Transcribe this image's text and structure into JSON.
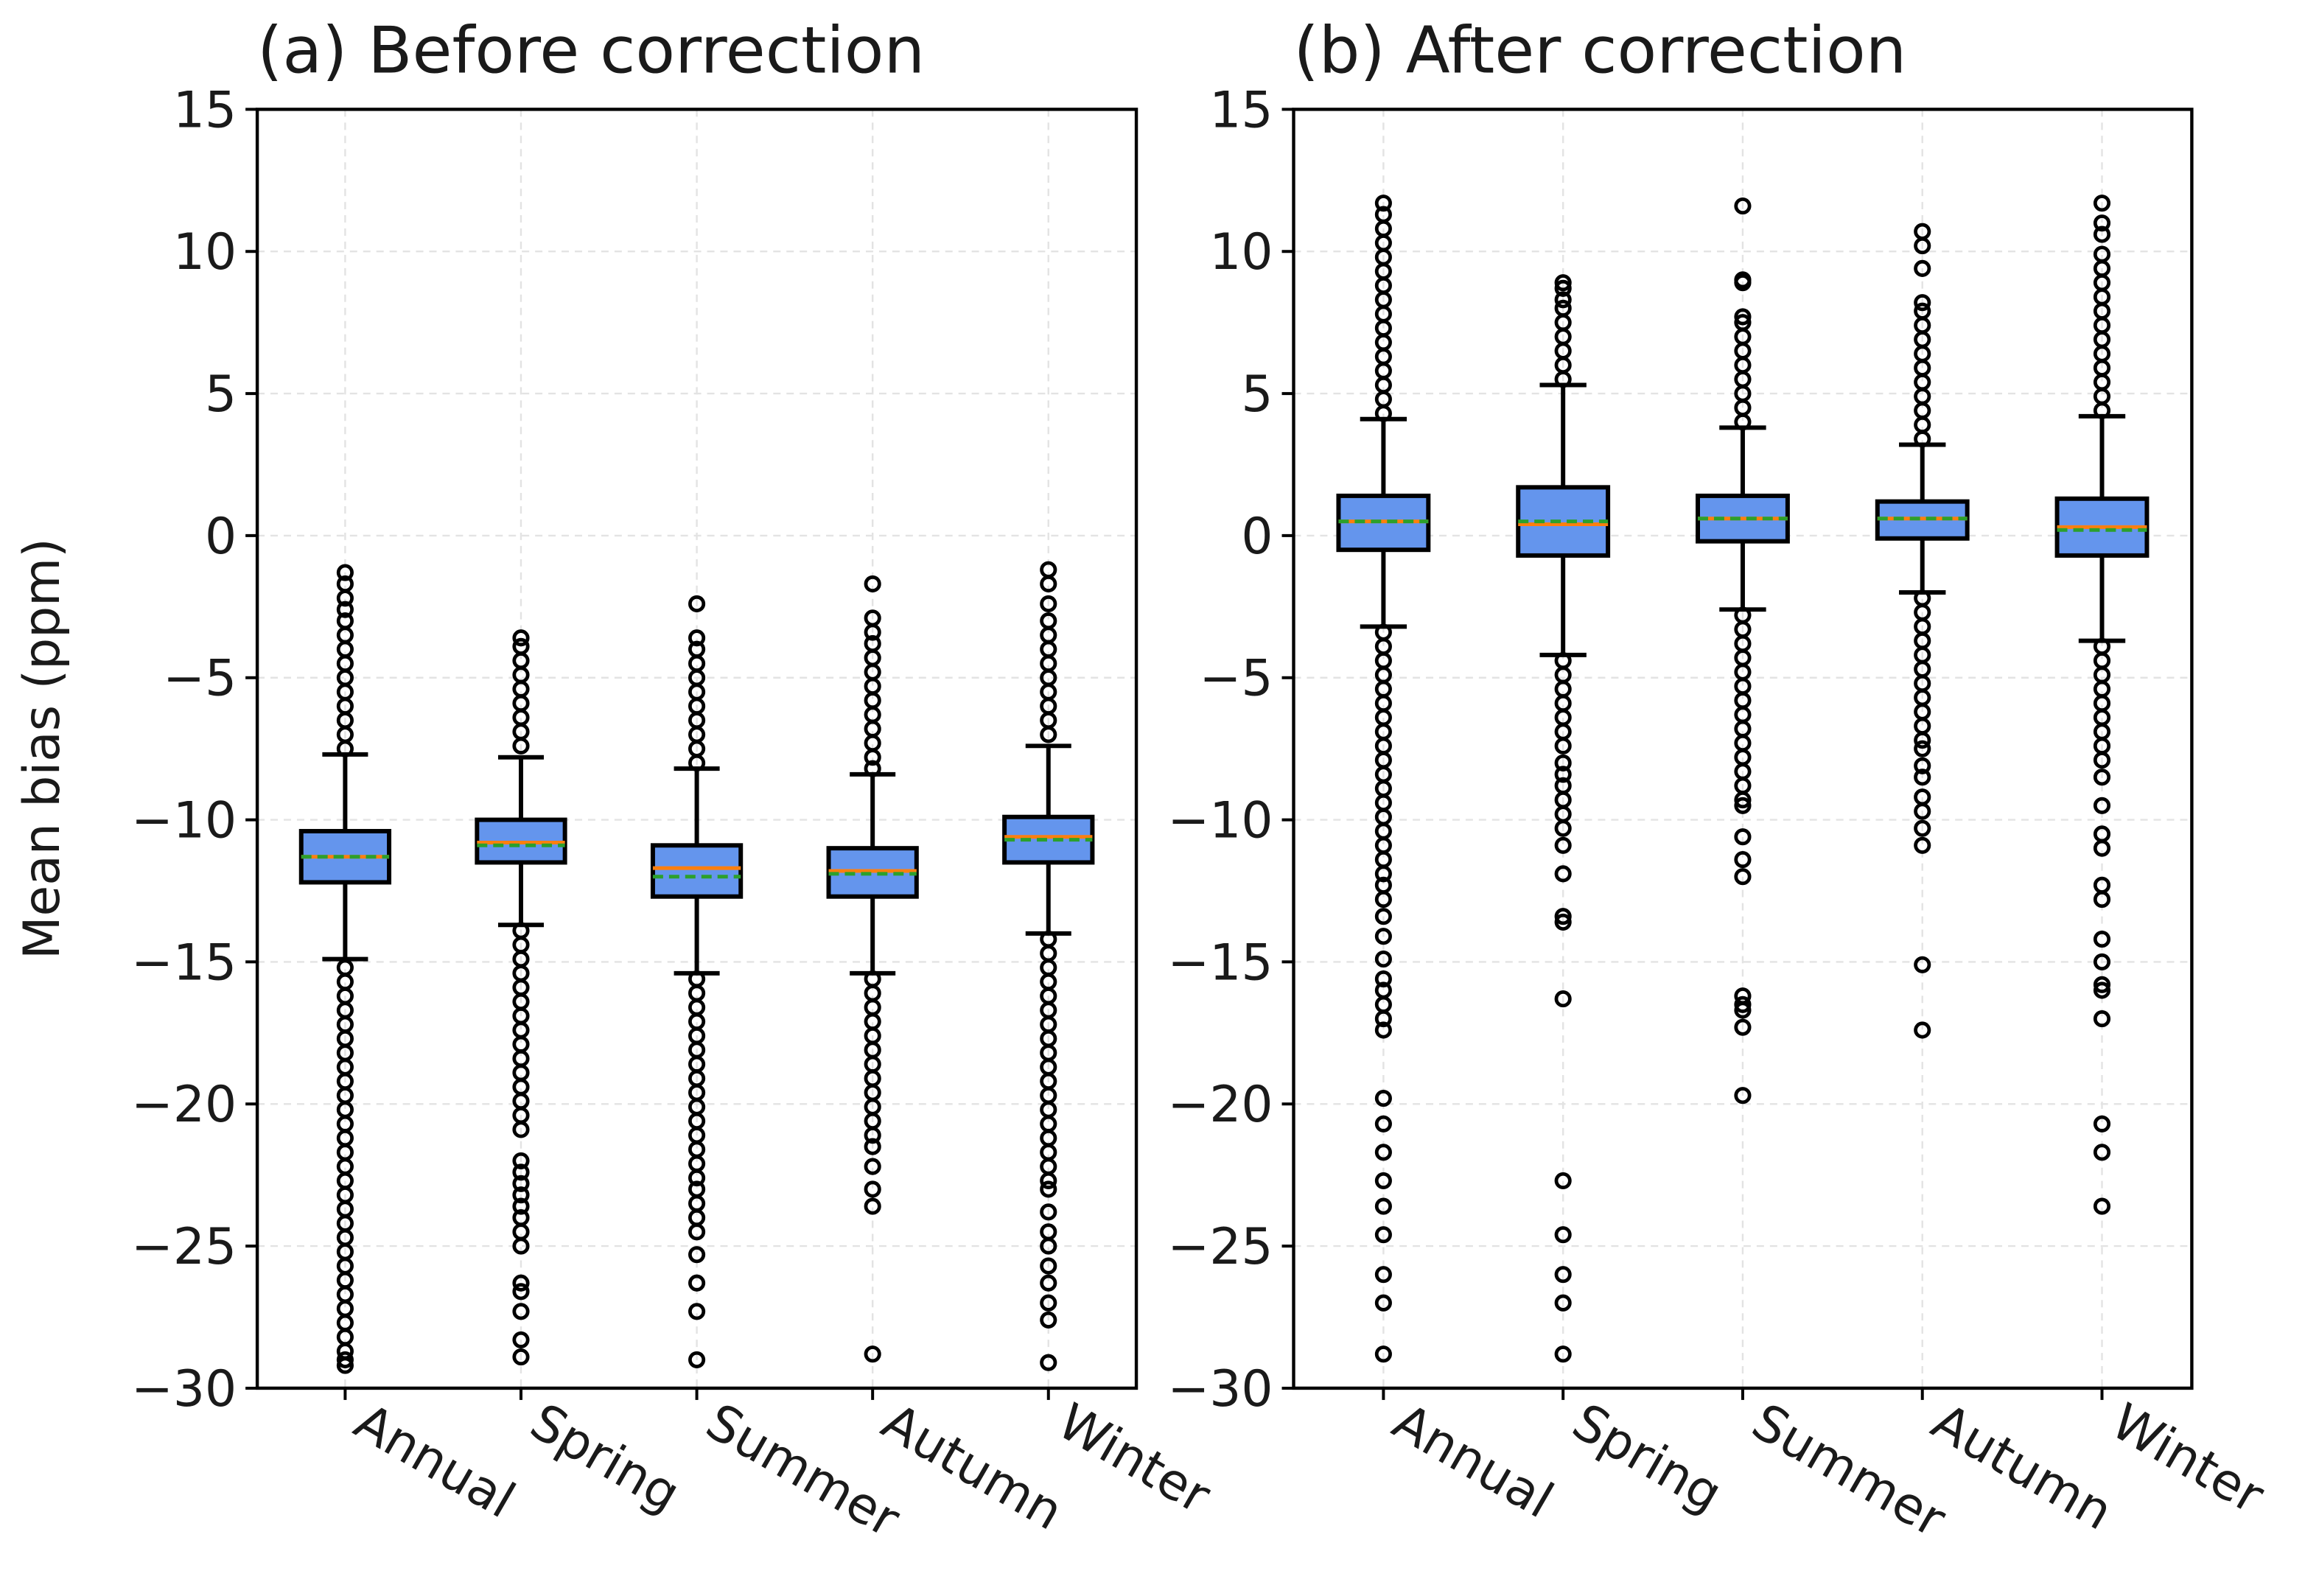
{
  "chart_data": [
    {
      "type": "box",
      "title": "(a) Before correction",
      "ylabel": "Mean bias (ppm)",
      "categories": [
        "Annual",
        "Spring",
        "Summer",
        "Autumn",
        "Winter"
      ],
      "color": "#6495ed",
      "median_color": "#ff7f0e",
      "mean_color": "#2ca02c",
      "grid": true,
      "ylim": [
        -30,
        15
      ],
      "yticks": [
        {
          "value": -30,
          "label": "−30"
        },
        {
          "value": -25,
          "label": "−25"
        },
        {
          "value": -20,
          "label": "−20"
        },
        {
          "value": -15,
          "label": "−15"
        },
        {
          "value": -10,
          "label": "−10"
        },
        {
          "value": -5,
          "label": "−5"
        },
        0,
        5,
        10,
        15
      ],
      "boxes": [
        {
          "whisker_low": -14.9,
          "q1": -12.2,
          "median": -11.3,
          "mean": -11.3,
          "q3": -10.4,
          "whisker_high": -7.7,
          "outliers": [
            -1.3,
            -1.7,
            -2.2,
            -2.6,
            -3.0,
            -3.5,
            -4.0,
            -4.5,
            -5.0,
            -5.5,
            -6.0,
            -6.5,
            -7.0,
            -7.5,
            -15.2,
            -15.7,
            -16.2,
            -16.7,
            -17.2,
            -17.7,
            -18.2,
            -18.7,
            -19.2,
            -19.7,
            -20.2,
            -20.7,
            -21.2,
            -21.7,
            -22.2,
            -22.7,
            -23.2,
            -23.7,
            -24.2,
            -24.7,
            -25.2,
            -25.7,
            -26.2,
            -26.7,
            -27.2,
            -27.7,
            -28.2,
            -28.7,
            -29.0,
            -29.2
          ]
        },
        {
          "whisker_low": -13.7,
          "q1": -11.5,
          "median": -10.8,
          "mean": -10.9,
          "q3": -10.0,
          "whisker_high": -7.8,
          "outliers": [
            -3.6,
            -3.9,
            -4.4,
            -4.9,
            -5.4,
            -5.9,
            -6.4,
            -6.9,
            -7.4,
            -13.9,
            -14.4,
            -14.9,
            -15.4,
            -15.9,
            -16.4,
            -16.9,
            -17.4,
            -17.9,
            -18.4,
            -18.9,
            -19.4,
            -19.9,
            -20.4,
            -20.9,
            -22.0,
            -22.4,
            -22.8,
            -23.2,
            -23.6,
            -24.0,
            -24.5,
            -25.0,
            -26.3,
            -26.6,
            -27.3,
            -28.3,
            -28.9
          ]
        },
        {
          "whisker_low": -15.4,
          "q1": -12.7,
          "median": -11.7,
          "mean": -12.0,
          "q3": -10.9,
          "whisker_high": -8.2,
          "outliers": [
            -2.4,
            -3.6,
            -4.0,
            -4.5,
            -5.0,
            -5.5,
            -6.0,
            -6.5,
            -7.0,
            -7.5,
            -8.0,
            -15.6,
            -16.1,
            -16.6,
            -17.1,
            -17.6,
            -18.1,
            -18.6,
            -19.1,
            -19.6,
            -20.1,
            -20.6,
            -21.1,
            -21.6,
            -22.1,
            -22.6,
            -23.0,
            -23.5,
            -24.0,
            -24.5,
            -25.3,
            -26.3,
            -27.3,
            -29.0
          ]
        },
        {
          "whisker_low": -15.4,
          "q1": -12.7,
          "median": -11.8,
          "mean": -11.9,
          "q3": -11.0,
          "whisker_high": -8.4,
          "outliers": [
            -1.7,
            -2.9,
            -3.4,
            -3.8,
            -4.3,
            -4.8,
            -5.3,
            -5.8,
            -6.3,
            -6.8,
            -7.3,
            -7.8,
            -8.2,
            -15.6,
            -16.1,
            -16.6,
            -17.1,
            -17.6,
            -18.1,
            -18.6,
            -19.1,
            -19.6,
            -20.1,
            -20.6,
            -21.1,
            -21.5,
            -22.2,
            -23.0,
            -23.6,
            -28.8
          ]
        },
        {
          "whisker_low": -14.0,
          "q1": -11.5,
          "median": -10.6,
          "mean": -10.7,
          "q3": -9.9,
          "whisker_high": -7.4,
          "outliers": [
            -1.2,
            -1.7,
            -2.4,
            -3.0,
            -3.5,
            -4.0,
            -4.5,
            -5.0,
            -5.5,
            -6.0,
            -6.5,
            -7.0,
            -14.2,
            -14.7,
            -15.2,
            -15.7,
            -16.2,
            -16.7,
            -17.2,
            -17.7,
            -18.2,
            -18.7,
            -19.2,
            -19.7,
            -20.2,
            -20.7,
            -21.2,
            -21.7,
            -22.2,
            -22.7,
            -23.0,
            -23.8,
            -24.5,
            -25.0,
            -25.7,
            -26.3,
            -27.0,
            -27.6,
            -29.1
          ]
        }
      ]
    },
    {
      "type": "box",
      "title": "(b) After correction",
      "categories": [
        "Annual",
        "Spring",
        "Summer",
        "Autumn",
        "Winter"
      ],
      "color": "#6495ed",
      "median_color": "#ff7f0e",
      "mean_color": "#2ca02c",
      "grid": true,
      "ylim": [
        -30,
        15
      ],
      "yticks": [
        {
          "value": -30,
          "label": "−30"
        },
        {
          "value": -25,
          "label": "−25"
        },
        {
          "value": -20,
          "label": "−20"
        },
        {
          "value": -15,
          "label": "−15"
        },
        {
          "value": -10,
          "label": "−10"
        },
        {
          "value": -5,
          "label": "−5"
        },
        0,
        5,
        10,
        15
      ],
      "boxes": [
        {
          "whisker_low": -3.2,
          "q1": -0.5,
          "median": 0.5,
          "mean": 0.5,
          "q3": 1.4,
          "whisker_high": 4.1,
          "outliers": [
            4.3,
            4.8,
            5.3,
            5.8,
            6.3,
            6.8,
            7.3,
            7.8,
            8.3,
            8.8,
            9.3,
            9.8,
            10.3,
            10.8,
            11.3,
            11.7,
            -3.4,
            -3.9,
            -4.4,
            -4.9,
            -5.4,
            -5.9,
            -6.4,
            -6.9,
            -7.4,
            -7.9,
            -8.4,
            -8.9,
            -9.4,
            -9.9,
            -10.4,
            -10.9,
            -11.4,
            -11.9,
            -12.3,
            -12.8,
            -13.4,
            -14.1,
            -14.9,
            -15.6,
            -16.0,
            -16.5,
            -17.0,
            -17.4,
            -19.8,
            -20.7,
            -21.7,
            -22.7,
            -23.6,
            -24.6,
            -26.0,
            -27.0,
            -28.8
          ]
        },
        {
          "whisker_low": -4.2,
          "q1": -0.7,
          "median": 0.4,
          "mean": 0.5,
          "q3": 1.7,
          "whisker_high": 5.3,
          "outliers": [
            5.5,
            6.0,
            6.5,
            7.0,
            7.5,
            8.0,
            8.3,
            8.7,
            8.9,
            -4.4,
            -4.9,
            -5.4,
            -5.9,
            -6.4,
            -6.9,
            -7.4,
            -8.0,
            -8.4,
            -8.8,
            -9.3,
            -9.8,
            -10.3,
            -10.9,
            -11.9,
            -13.4,
            -13.6,
            -16.3,
            -22.7,
            -24.6,
            -26.0,
            -27.0,
            -28.8
          ]
        },
        {
          "whisker_low": -2.6,
          "q1": -0.2,
          "median": 0.6,
          "mean": 0.6,
          "q3": 1.4,
          "whisker_high": 3.8,
          "outliers": [
            4.0,
            4.5,
            5.0,
            5.5,
            6.0,
            6.5,
            7.0,
            7.5,
            7.7,
            8.9,
            9.0,
            11.6,
            -2.8,
            -3.3,
            -3.8,
            -4.3,
            -4.8,
            -5.3,
            -5.8,
            -6.3,
            -6.8,
            -7.3,
            -7.8,
            -8.3,
            -8.8,
            -9.3,
            -9.5,
            -10.6,
            -11.4,
            -12.0,
            -16.2,
            -16.5,
            -16.7,
            -17.3,
            -19.7
          ]
        },
        {
          "whisker_low": -2.0,
          "q1": -0.1,
          "median": 0.6,
          "mean": 0.6,
          "q3": 1.2,
          "whisker_high": 3.2,
          "outliers": [
            3.4,
            3.9,
            4.4,
            4.9,
            5.4,
            5.9,
            6.4,
            6.9,
            7.4,
            7.9,
            8.2,
            9.4,
            10.2,
            10.7,
            -2.2,
            -2.7,
            -3.2,
            -3.7,
            -4.2,
            -4.7,
            -5.2,
            -5.7,
            -6.2,
            -6.7,
            -7.2,
            -7.5,
            -8.1,
            -8.5,
            -9.2,
            -9.7,
            -10.3,
            -10.9,
            -15.1,
            -17.4
          ]
        },
        {
          "whisker_low": -3.7,
          "q1": -0.7,
          "median": 0.3,
          "mean": 0.2,
          "q3": 1.3,
          "whisker_high": 4.2,
          "outliers": [
            4.4,
            4.9,
            5.4,
            5.9,
            6.4,
            6.9,
            7.4,
            7.9,
            8.4,
            8.9,
            9.4,
            9.9,
            10.6,
            11.0,
            11.7,
            -3.9,
            -4.4,
            -4.9,
            -5.4,
            -5.9,
            -6.4,
            -6.9,
            -7.4,
            -7.9,
            -8.5,
            -9.5,
            -10.5,
            -11.0,
            -12.3,
            -12.8,
            -14.2,
            -15.0,
            -15.8,
            -16.0,
            -17.0,
            -20.7,
            -21.7,
            -23.6
          ]
        }
      ]
    }
  ]
}
